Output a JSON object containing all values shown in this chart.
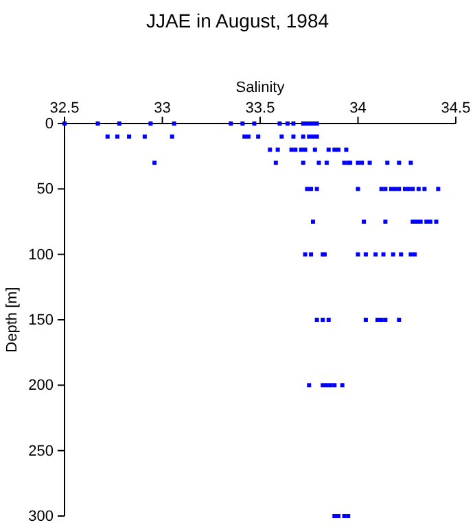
{
  "chart_data": {
    "type": "scatter",
    "title": "JJAE in August, 1984",
    "xlabel": "Salinity",
    "ylabel": "Depth [m]",
    "xlim": [
      32.5,
      34.5
    ],
    "xticks": [
      32.5,
      33,
      33.5,
      34,
      34.5
    ],
    "ylim": [
      300,
      0
    ],
    "yticks": [
      0,
      50,
      100,
      150,
      200,
      250,
      300
    ],
    "grid": false,
    "marker": "square",
    "series": [
      {
        "color": "#0000ff",
        "x": [
          32.5,
          32.67,
          32.78,
          32.94,
          33.06,
          33.35,
          33.41,
          33.47,
          33.6,
          33.64,
          33.67,
          33.72,
          33.73,
          33.75,
          33.77,
          33.79,
          32.72,
          32.77,
          32.83,
          32.91,
          33.05,
          33.42,
          33.44,
          33.49,
          33.61,
          33.67,
          33.72,
          33.75,
          33.77,
          33.79,
          33.55,
          33.59,
          33.66,
          33.68,
          33.71,
          33.73,
          33.78,
          33.85,
          33.88,
          33.9,
          33.94,
          32.96,
          33.58,
          33.72,
          33.8,
          33.84,
          33.93,
          33.95,
          33.96,
          34.0,
          34.02,
          34.06,
          34.15,
          34.21,
          34.27,
          33.74,
          33.76,
          33.79,
          34.0,
          34.12,
          34.14,
          34.17,
          34.19,
          34.21,
          34.24,
          34.26,
          34.28,
          34.31,
          34.34,
          34.41,
          33.77,
          34.03,
          34.14,
          34.28,
          34.3,
          34.32,
          34.35,
          34.37,
          34.4,
          33.73,
          33.76,
          33.82,
          33.83,
          34.0,
          34.04,
          34.09,
          34.13,
          34.18,
          34.22,
          34.27,
          34.29,
          33.79,
          33.82,
          33.85,
          34.04,
          34.1,
          34.12,
          34.14,
          34.21,
          33.75,
          33.82,
          33.84,
          33.86,
          33.88,
          33.92,
          33.88,
          33.9,
          33.93,
          33.95
        ],
        "values": [
          0,
          0,
          0,
          0,
          0,
          0,
          0,
          0,
          0,
          0,
          0,
          0,
          0,
          0,
          0,
          0,
          10,
          10,
          10,
          10,
          10,
          10,
          10,
          10,
          10,
          10,
          10,
          10,
          10,
          10,
          20,
          20,
          20,
          20,
          20,
          20,
          20,
          20,
          20,
          20,
          20,
          30,
          30,
          30,
          30,
          30,
          30,
          30,
          30,
          30,
          30,
          30,
          30,
          30,
          30,
          50,
          50,
          50,
          50,
          50,
          50,
          50,
          50,
          50,
          50,
          50,
          50,
          50,
          50,
          50,
          75,
          75,
          75,
          75,
          75,
          75,
          75,
          75,
          75,
          100,
          100,
          100,
          100,
          100,
          100,
          100,
          100,
          100,
          100,
          100,
          100,
          150,
          150,
          150,
          150,
          150,
          150,
          150,
          150,
          200,
          200,
          200,
          200,
          200,
          200,
          300,
          300,
          300,
          300
        ]
      }
    ]
  }
}
